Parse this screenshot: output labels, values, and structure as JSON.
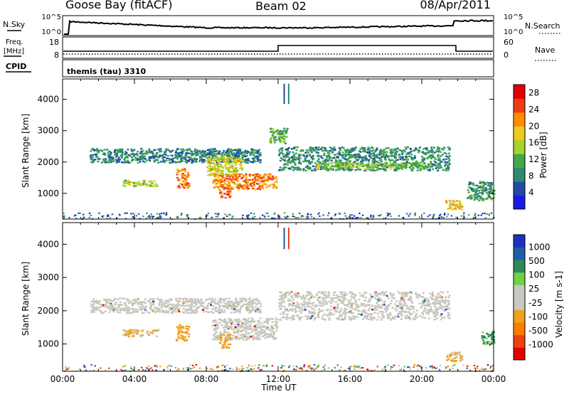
{
  "header": {
    "station": "Goose Bay (fitACF)",
    "beam": "Beam 02",
    "date": "08/Apr/2011"
  },
  "panels": {
    "nsky_label": "N.Sky",
    "nsearch_label": "N.Search",
    "freq_label": "Freq.",
    "freq_unit_label": "[MHz]",
    "nave_label": "Nave",
    "cpid_label": "CPID",
    "cpid_value": "themis (tau) 3310",
    "noise_ticks_left": [
      "10^5",
      "10^0"
    ],
    "noise_ticks_right": [
      "10^5",
      "10^0"
    ],
    "freq_ticks": [
      "18",
      "8"
    ],
    "nave_ticks": [
      "60",
      "0"
    ]
  },
  "colors": {
    "power_scale": [
      "#1a1ae6",
      "#1f4aa8",
      "#2e8a6e",
      "#43a84a",
      "#a5d42a",
      "#f0c81e",
      "#ff8c00",
      "#f03c14",
      "#e00000"
    ],
    "velocity_scale": [
      "#1f2fbf",
      "#1f5fa8",
      "#2e8a55",
      "#6fd04a",
      "#c8c8c0",
      "#c8c8c0",
      "#f0a020",
      "#ff7a00",
      "#f04010",
      "#e00000"
    ],
    "ground_scatter": "#c8c8c0"
  },
  "chart_data": [
    {
      "type": "heatmap",
      "name": "power",
      "title": "",
      "xlabel": "Time UT",
      "ylabel": "Slant Range [km]",
      "x_ticks": [
        "00:00",
        "04:00",
        "08:00",
        "12:00",
        "16:00",
        "20:00",
        "00:00"
      ],
      "y_ticks": [
        1000,
        2000,
        3000,
        4000
      ],
      "xlim_hours": [
        0,
        24
      ],
      "ylim_km": [
        180,
        4650
      ],
      "colorbar_label": "Power [dB]",
      "colorbar_ticks": [
        4,
        8,
        12,
        16,
        20,
        24,
        28
      ],
      "colorbar_range": [
        0,
        30
      ],
      "regions": [
        {
          "t": [
            1.5,
            11.0
          ],
          "r": [
            2000,
            2450
          ],
          "level": 8
        },
        {
          "t": [
            12.0,
            21.5
          ],
          "r": [
            1750,
            2500
          ],
          "level": 9
        },
        {
          "t": [
            8.3,
            11.9
          ],
          "r": [
            1150,
            1650
          ],
          "level": 22
        },
        {
          "t": [
            8.0,
            10.0
          ],
          "r": [
            1600,
            2200
          ],
          "level": 17
        },
        {
          "t": [
            14.0,
            20.5
          ],
          "r": [
            1800,
            2000
          ],
          "level": 14
        },
        {
          "t": [
            3.3,
            5.3
          ],
          "r": [
            1250,
            1450
          ],
          "level": 14
        },
        {
          "t": [
            6.3,
            7.0
          ],
          "r": [
            1200,
            1800
          ],
          "level": 22
        },
        {
          "t": [
            8.7,
            9.3
          ],
          "r": [
            850,
            1200
          ],
          "level": 24
        },
        {
          "t": [
            21.3,
            22.2
          ],
          "r": [
            500,
            800
          ],
          "level": 18
        },
        {
          "t": [
            22.5,
            24.0
          ],
          "r": [
            800,
            1400
          ],
          "level": 10
        },
        {
          "t": [
            11.5,
            12.5
          ],
          "r": [
            2600,
            3100
          ],
          "level": 12
        }
      ]
    },
    {
      "type": "heatmap",
      "name": "velocity",
      "title": "",
      "xlabel": "Time UT",
      "ylabel": "Slant Range [km]",
      "x_ticks": [
        "00:00",
        "04:00",
        "08:00",
        "12:00",
        "16:00",
        "20:00",
        "00:00"
      ],
      "y_ticks": [
        1000,
        2000,
        3000,
        4000
      ],
      "xlim_hours": [
        0,
        24
      ],
      "ylim_km": [
        180,
        4650
      ],
      "colorbar_label": "Velocity [m s-1]",
      "colorbar_ticks": [
        "1000",
        "500",
        "100",
        "25",
        "-25",
        "-100",
        "-500",
        "-1000"
      ],
      "regions": [
        {
          "t": [
            1.5,
            11.0
          ],
          "r": [
            1950,
            2400
          ],
          "kind": "ground"
        },
        {
          "t": [
            12.0,
            21.5
          ],
          "r": [
            1750,
            2600
          ],
          "kind": "ground"
        },
        {
          "t": [
            8.3,
            11.9
          ],
          "r": [
            1150,
            1800
          ],
          "kind": "ground"
        },
        {
          "t": [
            3.3,
            5.3
          ],
          "r": [
            1250,
            1450
          ],
          "velocity": -150
        },
        {
          "t": [
            6.3,
            7.0
          ],
          "r": [
            1100,
            1600
          ],
          "velocity": -300
        },
        {
          "t": [
            8.7,
            9.3
          ],
          "r": [
            900,
            1300
          ],
          "velocity": -200
        },
        {
          "t": [
            21.3,
            22.2
          ],
          "r": [
            500,
            800
          ],
          "velocity": -150
        },
        {
          "t": [
            23.3,
            24.0
          ],
          "r": [
            1000,
            1400
          ],
          "velocity": 200
        }
      ]
    }
  ]
}
